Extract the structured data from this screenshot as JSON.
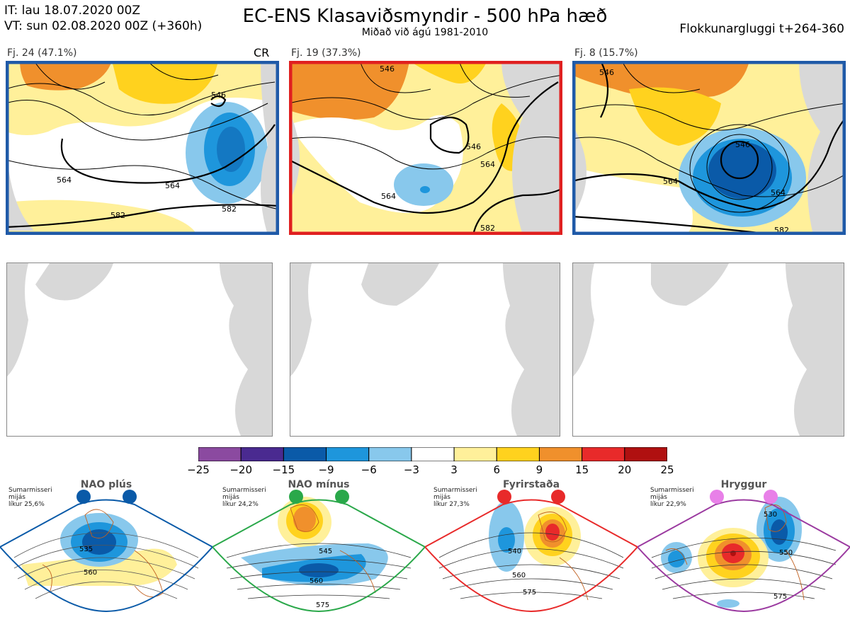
{
  "header": {
    "it_line": "IT: lau 18.07.2020 00Z",
    "vt_line": "VT: sun 02.08.2020 00Z  (+360h)",
    "title": "EC-ENS Klasaviðsmyndir - 500 hPa hæð",
    "subtitle": "Miðað við ágú 1981-2010",
    "window": "Flokkunargluggi t+264-360"
  },
  "clusters": [
    {
      "label": "Fj. 24 (47.1%)",
      "tag": "CR",
      "frame_color": "#1f5aa8",
      "contours": [
        "546",
        "564",
        "564",
        "582",
        "582"
      ]
    },
    {
      "label": "Fj. 19 (37.3%)",
      "tag": "",
      "frame_color": "#e02020",
      "contours": [
        "546",
        "546",
        "564",
        "564",
        "582"
      ]
    },
    {
      "label": "Fj. 8 (15.7%)",
      "tag": "",
      "frame_color": "#1f5aa8",
      "contours": [
        "546",
        "546",
        "564",
        "564",
        "582"
      ]
    }
  ],
  "colorbar": {
    "colors": [
      "#8b4aa0",
      "#4a2a90",
      "#0a5aa8",
      "#1e96dc",
      "#88c8ec",
      "#ffffff",
      "#fff09a",
      "#ffd21e",
      "#f0902c",
      "#e82a2a",
      "#b01010"
    ],
    "ticks": [
      "−25",
      "−20",
      "−15",
      "−9",
      "−6",
      "−3",
      "3",
      "6",
      "9",
      "15",
      "20",
      "25"
    ]
  },
  "regimes": [
    {
      "name": "NAO plús",
      "note": [
        "Sumarmisseri",
        "mijás",
        "líkur 25,6%"
      ],
      "color": "#0a5aa8",
      "contours": [
        "535",
        "560"
      ]
    },
    {
      "name": "NAO mínus",
      "note": [
        "Sumarmisseri",
        "mijás",
        "líkur 24,2%"
      ],
      "color": "#2aa84a",
      "contours": [
        "545",
        "560",
        "575"
      ]
    },
    {
      "name": "Fyrirstaða",
      "note": [
        "Sumarmisseri",
        "mijás",
        "líkur 27,3%"
      ],
      "color": "#e82a2a",
      "contours": [
        "540",
        "560",
        "575"
      ]
    },
    {
      "name": "Hryggur",
      "note": [
        "Sumarmisseri",
        "mijás",
        "líkur 22,9%"
      ],
      "color": "#9b3aa0",
      "contours": [
        "530",
        "550",
        "575"
      ]
    }
  ]
}
